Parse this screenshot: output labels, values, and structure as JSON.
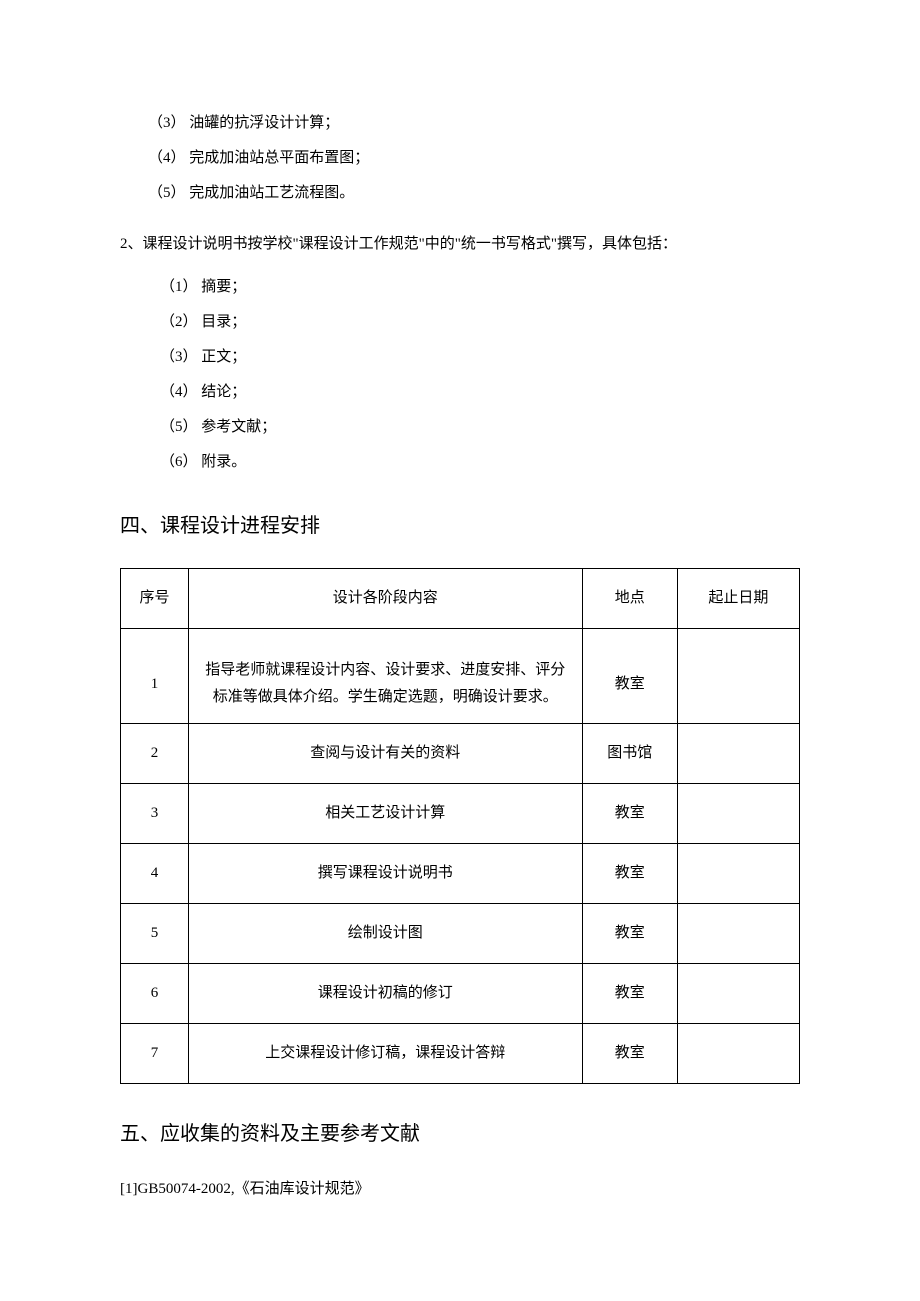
{
  "top_items": [
    "（3） 油罐的抗浮设计计算；",
    "（4） 完成加油站总平面布置图；",
    "（5） 完成加油站工艺流程图。"
  ],
  "numbered_para": "2、课程设计说明书按学校\"课程设计工作规范\"中的\"统一书写格式\"撰写，具体包括：",
  "sub_items": [
    "（1） 摘要；",
    "（2） 目录；",
    "（3） 正文；",
    "（4） 结论；",
    "（5） 参考文献；",
    "（6） 附录。"
  ],
  "section4_heading": "四、课程设计进程安排",
  "table": {
    "headers": {
      "seq": "序号",
      "content": "设计各阶段内容",
      "location": "地点",
      "date": "起止日期"
    },
    "rows": [
      {
        "seq": "1",
        "content": "指导老师就课程设计内容、设计要求、进度安排、评分标准等做具体介绍。学生确定选题，明确设计要求。",
        "location": "教室",
        "date": ""
      },
      {
        "seq": "2",
        "content": "查阅与设计有关的资料",
        "location": "图书馆",
        "date": ""
      },
      {
        "seq": "3",
        "content": "相关工艺设计计算",
        "location": "教室",
        "date": ""
      },
      {
        "seq": "4",
        "content": "撰写课程设计说明书",
        "location": "教室",
        "date": ""
      },
      {
        "seq": "5",
        "content": "绘制设计图",
        "location": "教室",
        "date": ""
      },
      {
        "seq": "6",
        "content": "课程设计初稿的修订",
        "location": "教室",
        "date": ""
      },
      {
        "seq": "7",
        "content": "上交课程设计修订稿，课程设计答辩",
        "location": "教室",
        "date": ""
      }
    ]
  },
  "section5_heading": "五、应收集的资料及主要参考文献",
  "references": [
    "[1]GB50074-2002,《石油库设计规范》"
  ]
}
